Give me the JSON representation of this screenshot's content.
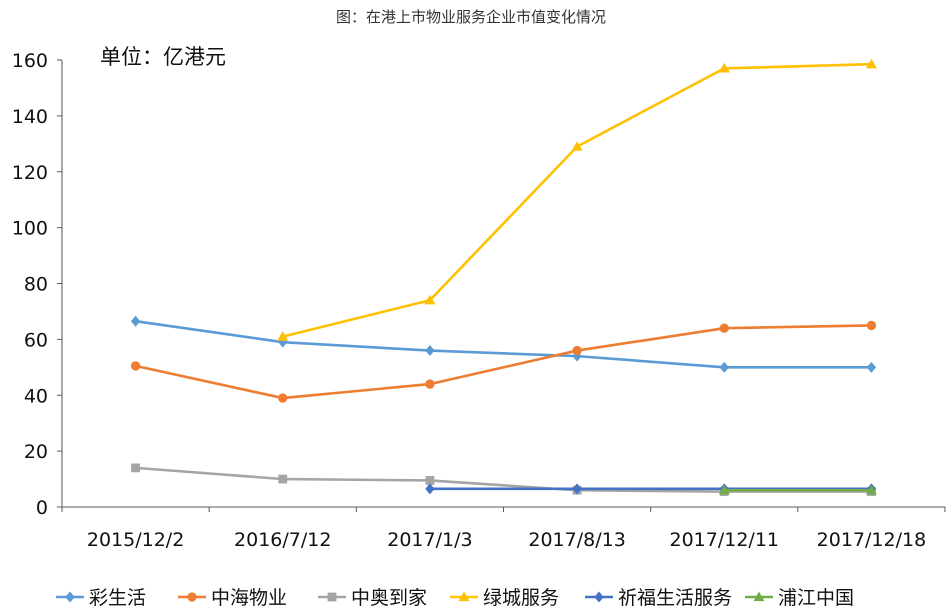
{
  "chart_data": {
    "type": "line",
    "title": "图：在港上市物业服务企业市值变化情况",
    "unit_label": "单位：亿港元",
    "categories": [
      "2015/12/2",
      "2016/7/12",
      "2017/1/3",
      "2017/8/13",
      "2017/12/11",
      "2017/12/18"
    ],
    "ylim": [
      0,
      160
    ],
    "yticks": [
      0,
      20,
      40,
      60,
      80,
      100,
      120,
      140,
      160
    ],
    "grid": false,
    "legend_position": "bottom",
    "series": [
      {
        "name": "彩生活",
        "color": "#5B9BD5",
        "marker": "diamond",
        "values": [
          66.5,
          59,
          56,
          54,
          50,
          50
        ]
      },
      {
        "name": "中海物业",
        "color": "#ED7D31",
        "marker": "circle",
        "values": [
          50.5,
          39,
          44,
          56,
          64,
          65
        ]
      },
      {
        "name": "中奥到家",
        "color": "#A5A5A5",
        "marker": "square",
        "values": [
          14,
          10,
          9.5,
          6,
          5.5,
          5.5
        ]
      },
      {
        "name": "绿城服务",
        "color": "#FFC000",
        "marker": "triangle",
        "values": [
          null,
          61,
          74,
          129,
          157,
          158.5
        ]
      },
      {
        "name": "祈福生活服务",
        "color": "#4472C4",
        "marker": "diamond",
        "values": [
          null,
          null,
          6.5,
          6.5,
          6.5,
          6.5
        ]
      },
      {
        "name": "浦江中国",
        "color": "#70AD47",
        "marker": "triangle",
        "values": [
          null,
          null,
          null,
          null,
          6,
          6
        ]
      }
    ]
  }
}
